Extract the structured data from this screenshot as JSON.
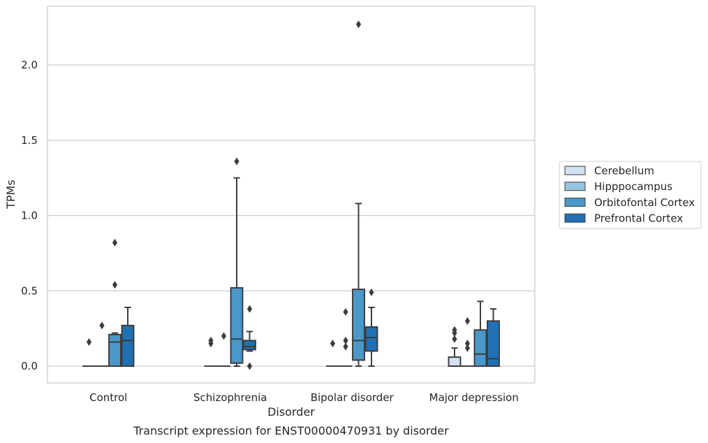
{
  "chart_data": {
    "type": "box",
    "xlabel": "Disorder",
    "ylabel": "TPMs",
    "caption": "Transcript expression for ENST00000470931 by disorder",
    "categories": [
      "Control",
      "Schizophrenia",
      "Bipolar disorder",
      "Major depression"
    ],
    "ylim": [
      -0.11,
      2.38
    ],
    "yticks": [
      0.0,
      0.5,
      1.0,
      1.5,
      2.0
    ],
    "ytick_labels": [
      "0.0",
      "0.5",
      "1.0",
      "1.5",
      "2.0"
    ],
    "grid": "horizontal",
    "legend": {
      "placement": "right",
      "entries": [
        "Cerebellum",
        "Hipppocampus",
        "Orbitofontal Cortex",
        "Prefrontal Cortex"
      ]
    },
    "series": [
      {
        "name": "Cerebellum",
        "color": "#d0e1f2",
        "boxes": [
          {
            "q1": 0,
            "median": 0,
            "q3": 0,
            "whislo": 0,
            "whishi": 0,
            "fliers": [
              0.16
            ]
          },
          {
            "q1": 0,
            "median": 0,
            "q3": 0,
            "whislo": 0,
            "whishi": 0,
            "fliers": [
              0.15,
              0.17
            ]
          },
          {
            "q1": 0,
            "median": 0,
            "q3": 0,
            "whislo": 0,
            "whishi": 0,
            "fliers": [
              0.15
            ]
          },
          {
            "q1": 0,
            "median": 0,
            "q3": 0.06,
            "whislo": 0,
            "whishi": 0.12,
            "fliers": [
              0.18,
              0.22,
              0.24
            ]
          }
        ]
      },
      {
        "name": "Hipppocampus",
        "color": "#94c4df",
        "boxes": [
          {
            "q1": 0,
            "median": 0,
            "q3": 0,
            "whislo": 0,
            "whishi": 0,
            "fliers": [
              0.27
            ]
          },
          {
            "q1": 0,
            "median": 0,
            "q3": 0,
            "whislo": 0,
            "whishi": 0,
            "fliers": [
              0.2
            ]
          },
          {
            "q1": 0,
            "median": 0,
            "q3": 0,
            "whislo": 0,
            "whishi": 0,
            "fliers": [
              0.13,
              0.17,
              0.36
            ]
          },
          {
            "q1": 0,
            "median": 0,
            "q3": 0,
            "whislo": 0,
            "whishi": 0,
            "fliers": [
              0.12,
              0.15,
              0.3
            ]
          }
        ]
      },
      {
        "name": "Orbitofontal Cortex",
        "color": "#4a98c9",
        "boxes": [
          {
            "q1": 0,
            "median": 0.16,
            "q3": 0.21,
            "whislo": 0,
            "whishi": 0.22,
            "fliers": [
              0.54,
              0.82
            ]
          },
          {
            "q1": 0.02,
            "median": 0.18,
            "q3": 0.52,
            "whislo": 0,
            "whishi": 1.25,
            "fliers": [
              1.36
            ]
          },
          {
            "q1": 0.04,
            "median": 0.17,
            "q3": 0.51,
            "whislo": 0,
            "whishi": 1.08,
            "fliers": [
              2.27
            ]
          },
          {
            "q1": 0,
            "median": 0.08,
            "q3": 0.24,
            "whislo": 0,
            "whishi": 0.43,
            "fliers": []
          }
        ]
      },
      {
        "name": "Prefrontal Cortex",
        "color": "#2070b4",
        "boxes": [
          {
            "q1": 0,
            "median": 0.17,
            "q3": 0.27,
            "whislo": 0,
            "whishi": 0.39,
            "fliers": []
          },
          {
            "q1": 0.11,
            "median": 0.13,
            "q3": 0.17,
            "whislo": 0.1,
            "whishi": 0.23,
            "fliers": [
              0,
              0.38
            ]
          },
          {
            "q1": 0.1,
            "median": 0.19,
            "q3": 0.26,
            "whislo": 0,
            "whishi": 0.39,
            "fliers": [
              0.49
            ]
          },
          {
            "q1": 0,
            "median": 0.05,
            "q3": 0.3,
            "whislo": 0,
            "whishi": 0.38,
            "fliers": []
          }
        ]
      }
    ]
  }
}
